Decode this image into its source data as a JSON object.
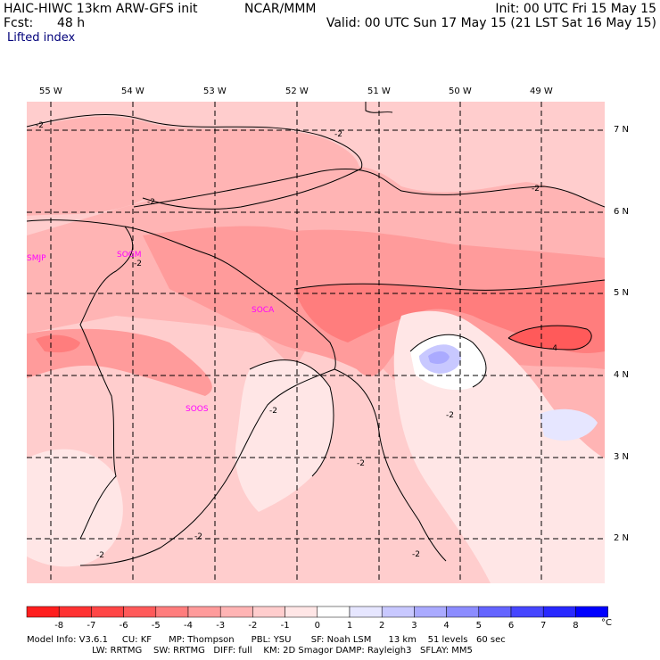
{
  "header": {
    "model": "HAIC-HIWC 13km ARW-GFS init",
    "center": "NCAR/MMM",
    "fcst_label": "Fcst:",
    "fcst_value": "48 h",
    "init": "Init: 00 UTC Fri 15 May 15",
    "valid": "Valid: 00 UTC Sun 17 May 15 (21 LST Sat 16 May 15)",
    "field": "Lifted index"
  },
  "map": {
    "lon_labels": [
      "55 W",
      "54 W",
      "53 W",
      "52 W",
      "51 W",
      "50 W",
      "49 W"
    ],
    "lat_labels": [
      "7 N",
      "6 N",
      "5 N",
      "4 N",
      "3 N",
      "2 N"
    ],
    "stations": [
      "SMJP",
      "SOGM",
      "SOCA",
      "SOOS"
    ],
    "contour_label": "-2",
    "contour_label_alt": "-4",
    "station_color": "#ff00ff"
  },
  "colorbar": {
    "labels": [
      "-8",
      "-7",
      "-6",
      "-5",
      "-4",
      "-3",
      "-2",
      "-1",
      "0",
      "1",
      "2",
      "3",
      "4",
      "5",
      "6",
      "7",
      "8"
    ],
    "unit": "°C",
    "colors": [
      "#ff1e1e",
      "#ff3232",
      "#ff4646",
      "#ff5a5a",
      "#ff7d7d",
      "#ff9b9b",
      "#ffb4b4",
      "#ffcdcd",
      "#ffe6e6",
      "#ffffff",
      "#e6e6ff",
      "#c8c8ff",
      "#aaaaff",
      "#8c8cff",
      "#6464ff",
      "#4646ff",
      "#2828ff",
      "#0000ff"
    ]
  },
  "footer": {
    "line1": "Model Info: V3.6.1     CU: KF      MP: Thompson      PBL: YSU       SF: Noah LSM      13 km    51 levels   60 sec",
    "line2": "                       LW: RRTMG    SW: RRTMG   DIFF: full    KM: 2D Smagor DAMP: Rayleigh3   SFLAY: MM5"
  }
}
